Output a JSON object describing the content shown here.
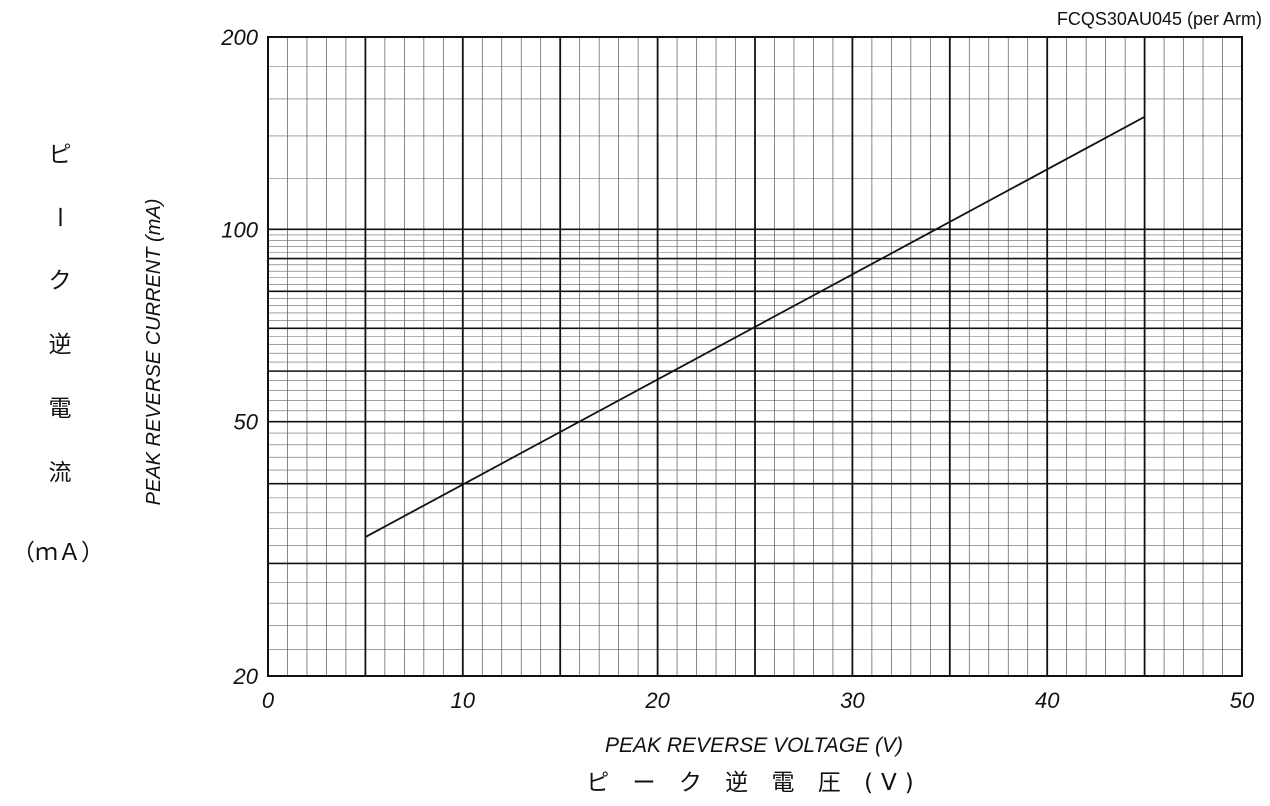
{
  "chart_data": {
    "type": "line",
    "subtitle": "FCQS30AU045 (per Arm)",
    "xlabel": "PEAK REVERSE VOLTAGE (V)",
    "xlabel_jp": "ピ ー ク 逆 電 圧 (V)",
    "ylabel": "PEAK REVERSE CURRENT (mA)",
    "ylabel_jp": [
      "ピ",
      "ー",
      "ク",
      "逆",
      "電",
      "流"
    ],
    "ylabel_jp_unit": "（ｍＡ）",
    "xlim": [
      0,
      50
    ],
    "ylim": [
      20,
      200
    ],
    "yscale": "log",
    "grid": true,
    "x_ticks": [
      "0",
      "10",
      "20",
      "30",
      "40",
      "50"
    ],
    "y_ticks": [
      {
        "value": 20,
        "label": "20"
      },
      {
        "value": 50,
        "label": "50"
      },
      {
        "value": 100,
        "label": "100"
      },
      {
        "value": 200,
        "label": "200"
      }
    ],
    "series": [
      {
        "x": [
          5,
          45
        ],
        "y": [
          33,
          150
        ]
      }
    ]
  }
}
